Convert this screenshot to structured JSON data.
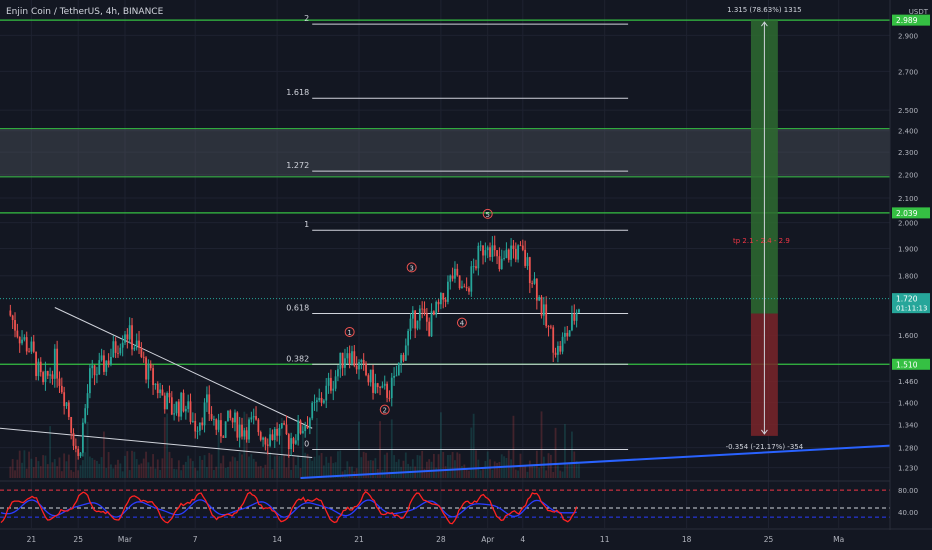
{
  "symbol_title": "Enjin Coin / TetherUS, 4h, BINANCE",
  "currency_label": "USDT",
  "colors": {
    "background": "#131722",
    "grid": "#1e2230",
    "up": "#26a69a",
    "down": "#ef5350",
    "fib": "#d1d4dc",
    "level_green": "#35c043",
    "trend_white": "#d1d4dc",
    "trend_blue": "#2962ff",
    "target_box": "#2e6b30",
    "stop_box": "#7a2429",
    "rsi_red": "#ff2222",
    "rsi_blue": "#2a3cff",
    "wave_label": "#ef5350",
    "tp_label": "#f23645"
  },
  "chart_data": {
    "type": "candlestick",
    "timeframe": "4h",
    "price_axis": {
      "ticks": [
        "2.900",
        "2.700",
        "2.500",
        "2.400",
        "2.300",
        "2.200",
        "2.100",
        "2.000",
        "1.900",
        "1.800",
        "1.600",
        "1.460",
        "1.400",
        "1.340",
        "1.280",
        "1.230"
      ],
      "log_scale": true
    },
    "badges": [
      {
        "value": "2.989",
        "price": 2.989,
        "color": "#35c043"
      },
      {
        "value": "2.039",
        "price": 2.039,
        "color": "#35c043"
      },
      {
        "value": "1.720",
        "price": 1.72,
        "color": "#26a69a",
        "countdown": "01:11:13"
      },
      {
        "value": "1.510",
        "price": 1.51,
        "color": "#35c043"
      }
    ],
    "time_axis": {
      "labels": [
        {
          "text": "21",
          "day": -8
        },
        {
          "text": "25",
          "day": -4
        },
        {
          "text": "Mar",
          "day": 0
        },
        {
          "text": "7",
          "day": 6
        },
        {
          "text": "14",
          "day": 13
        },
        {
          "text": "21",
          "day": 20
        },
        {
          "text": "28",
          "day": 27
        },
        {
          "text": "Apr",
          "day": 31
        },
        {
          "text": "4",
          "day": 34
        },
        {
          "text": "11",
          "day": 41
        },
        {
          "text": "18",
          "day": 48
        },
        {
          "text": "25",
          "day": 55
        },
        {
          "text": "Ma",
          "day": 61
        }
      ]
    },
    "fib_levels": [
      {
        "label": "2",
        "price": 2.965
      },
      {
        "label": "1.618",
        "price": 2.56
      },
      {
        "label": "1.272",
        "price": 2.215
      },
      {
        "label": "1",
        "price": 1.97
      },
      {
        "label": "0.618",
        "price": 1.67
      },
      {
        "label": "0.382",
        "price": 1.51
      },
      {
        "label": "0",
        "price": 1.275
      }
    ],
    "horizontal_levels": [
      2.989,
      2.039,
      1.51
    ],
    "zone": {
      "top": 2.41,
      "bottom": 2.19
    },
    "elliott_waves": [
      {
        "label": "1",
        "day": 19.2,
        "price": 1.61
      },
      {
        "label": "2",
        "day": 22.2,
        "price": 1.38
      },
      {
        "label": "3",
        "day": 24.5,
        "price": 1.83
      },
      {
        "label": "4",
        "day": 28.8,
        "price": 1.64
      },
      {
        "label": "5",
        "day": 31.0,
        "price": 2.035
      }
    ],
    "position": {
      "entry": 1.67,
      "target": 2.989,
      "stop": 1.31,
      "target_label": "1.315 (78.63%) 1315",
      "stop_label": "-0.354 (-21.17%) -354",
      "tp_label": "tp 2.1 - 2.4 - 2.9",
      "tp_price": 1.92
    },
    "rsi": {
      "ticks": [
        "80.00",
        "40.00"
      ],
      "upper": 80,
      "lower": 40
    },
    "price_path": [
      [
        -10,
        1.68
      ],
      [
        -9,
        1.6
      ],
      [
        -8,
        1.55
      ],
      [
        -7,
        1.44
      ],
      [
        -6,
        1.52
      ],
      [
        -5,
        1.4
      ],
      [
        -4,
        1.25
      ],
      [
        -3,
        1.47
      ],
      [
        -2,
        1.5
      ],
      [
        -1,
        1.55
      ],
      [
        0,
        1.62
      ],
      [
        1,
        1.56
      ],
      [
        2,
        1.48
      ],
      [
        3,
        1.43
      ],
      [
        4,
        1.38
      ],
      [
        5,
        1.4
      ],
      [
        6,
        1.34
      ],
      [
        7,
        1.39
      ],
      [
        8,
        1.32
      ],
      [
        9,
        1.35
      ],
      [
        10,
        1.33
      ],
      [
        11,
        1.34
      ],
      [
        12,
        1.31
      ],
      [
        13,
        1.32
      ],
      [
        14,
        1.3
      ],
      [
        15,
        1.33
      ],
      [
        16,
        1.37
      ],
      [
        17,
        1.42
      ],
      [
        18,
        1.48
      ],
      [
        19,
        1.56
      ],
      [
        20,
        1.5
      ],
      [
        21,
        1.46
      ],
      [
        22,
        1.42
      ],
      [
        23,
        1.45
      ],
      [
        24,
        1.58
      ],
      [
        25,
        1.68
      ],
      [
        26,
        1.63
      ],
      [
        27,
        1.7
      ],
      [
        28,
        1.8
      ],
      [
        29,
        1.73
      ],
      [
        30,
        1.85
      ],
      [
        31,
        1.94
      ],
      [
        32,
        1.82
      ],
      [
        33,
        1.9
      ],
      [
        34,
        1.87
      ],
      [
        35,
        1.78
      ],
      [
        36,
        1.63
      ],
      [
        37,
        1.55
      ],
      [
        38,
        1.62
      ],
      [
        38.8,
        1.7
      ]
    ]
  }
}
